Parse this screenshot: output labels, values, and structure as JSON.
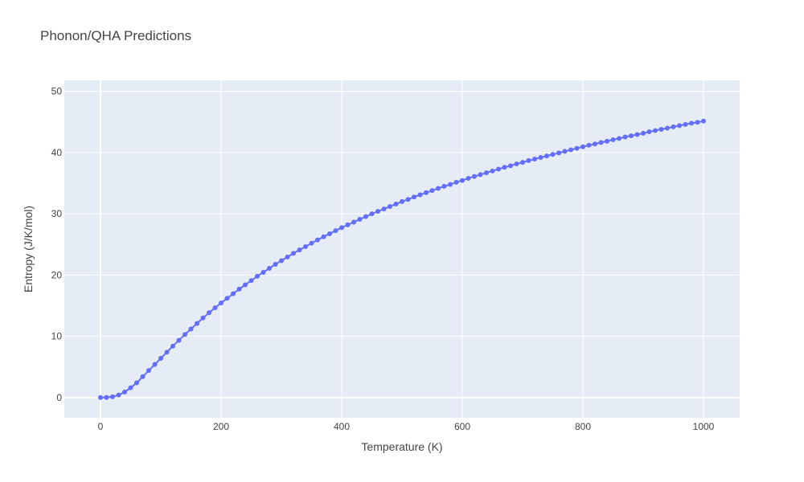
{
  "chart_data": {
    "type": "line",
    "title": "Phonon/QHA Predictions",
    "xlabel": "Temperature (K)",
    "ylabel": "Entropy (J/K/mol)",
    "xlim": [
      -60,
      1060
    ],
    "ylim": [
      -3.3,
      51.8
    ],
    "xticks": [
      0,
      200,
      400,
      600,
      800,
      1000
    ],
    "yticks": [
      0,
      10,
      20,
      30,
      40,
      50
    ],
    "grid": true,
    "legend": "none",
    "colors": {
      "plot_bg": "#e5ecf6",
      "grid": "#ffffff",
      "series": "#636efa"
    },
    "series": [
      {
        "x": [
          0,
          10,
          20,
          30,
          40,
          50,
          60,
          70,
          80,
          90,
          100,
          110,
          120,
          130,
          140,
          150,
          160,
          170,
          180,
          190,
          200,
          210,
          220,
          230,
          240,
          250,
          260,
          270,
          280,
          290,
          300,
          310,
          320,
          330,
          340,
          350,
          360,
          370,
          380,
          390,
          400,
          410,
          420,
          430,
          440,
          450,
          460,
          470,
          480,
          490,
          500,
          510,
          520,
          530,
          540,
          550,
          560,
          570,
          580,
          590,
          600,
          610,
          620,
          630,
          640,
          650,
          660,
          670,
          680,
          690,
          700,
          710,
          720,
          730,
          740,
          750,
          760,
          770,
          780,
          790,
          800,
          810,
          820,
          830,
          840,
          850,
          860,
          870,
          880,
          890,
          900,
          910,
          920,
          930,
          940,
          950,
          960,
          970,
          980,
          990,
          1000
        ],
        "y": [
          0,
          0.02,
          0.12,
          0.4,
          0.9,
          1.6,
          2.4,
          3.4,
          4.4,
          5.4,
          6.4,
          7.4,
          8.4,
          9.35,
          10.3,
          11.2,
          12.1,
          13,
          13.85,
          14.65,
          15.45,
          16.2,
          16.95,
          17.7,
          18.4,
          19.1,
          19.8,
          20.45,
          21.1,
          21.75,
          22.35,
          22.95,
          23.55,
          24.1,
          24.65,
          25.2,
          25.75,
          26.25,
          26.75,
          27.25,
          27.75,
          28.2,
          28.65,
          29.1,
          29.55,
          30,
          30.4,
          30.8,
          31.2,
          31.6,
          32,
          32.35,
          32.75,
          33.1,
          33.45,
          33.8,
          34.15,
          34.5,
          34.8,
          35.15,
          35.45,
          35.8,
          36.1,
          36.4,
          36.7,
          37,
          37.3,
          37.6,
          37.85,
          38.15,
          38.4,
          38.7,
          38.95,
          39.2,
          39.45,
          39.7,
          39.95,
          40.2,
          40.45,
          40.7,
          40.95,
          41.2,
          41.4,
          41.65,
          41.85,
          42.1,
          42.3,
          42.55,
          42.75,
          42.95,
          43.15,
          43.4,
          43.6,
          43.8,
          44,
          44.2,
          44.4,
          44.6,
          44.8,
          44.95,
          45.15
        ]
      }
    ]
  }
}
